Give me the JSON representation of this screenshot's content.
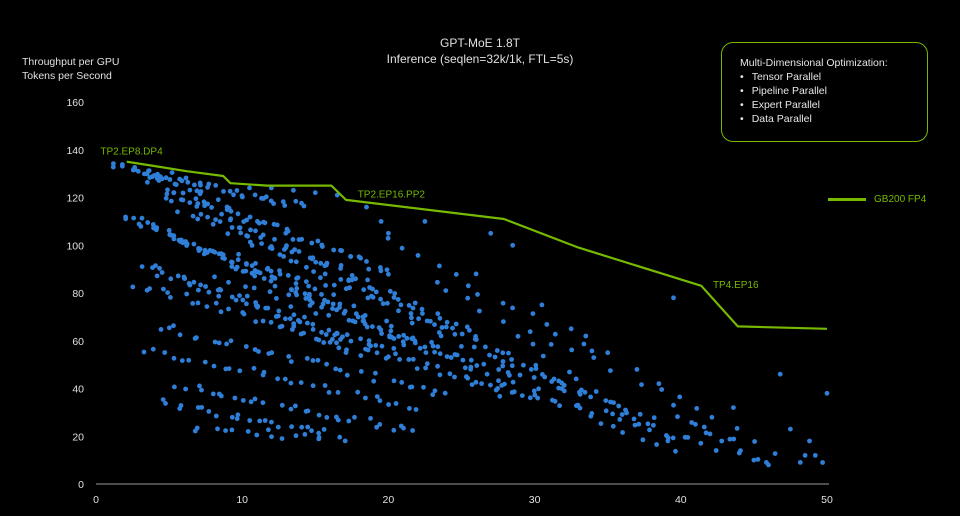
{
  "colors": {
    "background": "#000000",
    "frontier": "#76b900",
    "points": "#2f7fd8",
    "text": "#e0e0e0"
  },
  "header": {
    "title": "GPT-MoE 1.8T",
    "subtitle": "Inference (seqlen=32k/1k, FTL=5s)"
  },
  "ylabel_lines": [
    "Throughput per GPU",
    "Tokens per Second"
  ],
  "optimization_box": {
    "title": "Multi-Dimensional Optimization:",
    "items": [
      "Tensor Parallel",
      "Pipeline Parallel",
      "Expert Parallel",
      "Data Parallel"
    ]
  },
  "chart_data": {
    "type": "scatter",
    "title": "GPT-MoE 1.8T",
    "subtitle": "Inference (seqlen=32k/1k, FTL=5s)",
    "xlabel": "",
    "ylabel": "Throughput per GPU Tokens per Second",
    "xlim": [
      0,
      50
    ],
    "ylim": [
      0,
      160
    ],
    "xticks": [
      0,
      10,
      20,
      30,
      40,
      50
    ],
    "yticks": [
      0,
      20,
      40,
      60,
      80,
      100,
      120,
      140,
      160
    ],
    "grid": false,
    "legend_position": "right",
    "frontier": {
      "name": "GB200 FP4",
      "points": [
        [
          2.1,
          135
        ],
        [
          4.2,
          133
        ],
        [
          6.2,
          131
        ],
        [
          8.7,
          129
        ],
        [
          9.2,
          126
        ],
        [
          11.7,
          125
        ],
        [
          16.1,
          125
        ],
        [
          17.1,
          119
        ],
        [
          27.9,
          111
        ],
        [
          33.0,
          99
        ],
        [
          41.4,
          83
        ],
        [
          43.9,
          66
        ],
        [
          50.0,
          65
        ]
      ]
    },
    "annotations": [
      {
        "text": "TP2.EP8.DP4",
        "x": 0.3,
        "y": 138
      },
      {
        "text": "TP2.EP16.PP2",
        "x": 17.9,
        "y": 120
      },
      {
        "text": "TP4.EP16",
        "x": 42.2,
        "y": 82
      }
    ],
    "scatter_bands": [
      {
        "x0": 1.2,
        "y0": 134,
        "x1": 14,
        "y1": 116,
        "n": 40
      },
      {
        "x0": 2.5,
        "y0": 133,
        "x1": 20,
        "y1": 88,
        "n": 55
      },
      {
        "x0": 3.5,
        "y0": 128,
        "x1": 26,
        "y1": 62,
        "n": 55
      },
      {
        "x0": 4.5,
        "y0": 122,
        "x1": 33,
        "y1": 40,
        "n": 55
      },
      {
        "x0": 6,
        "y0": 114,
        "x1": 40,
        "y1": 18,
        "n": 50
      },
      {
        "x0": 1.8,
        "y0": 112,
        "x1": 16,
        "y1": 80,
        "n": 40
      },
      {
        "x0": 3,
        "y0": 110,
        "x1": 22,
        "y1": 58,
        "n": 45
      },
      {
        "x0": 5,
        "y0": 104,
        "x1": 30,
        "y1": 36,
        "n": 45
      },
      {
        "x0": 8,
        "y0": 98,
        "x1": 38,
        "y1": 18,
        "n": 40
      },
      {
        "x0": 3,
        "y0": 92,
        "x1": 20,
        "y1": 56,
        "n": 40
      },
      {
        "x0": 4.5,
        "y0": 88,
        "x1": 28,
        "y1": 38,
        "n": 40
      },
      {
        "x0": 2.8,
        "y0": 84,
        "x1": 18,
        "y1": 56,
        "n": 30
      },
      {
        "x0": 8,
        "y0": 86,
        "x1": 44,
        "y1": 18,
        "n": 40
      },
      {
        "x0": 4.3,
        "y0": 66,
        "x1": 24,
        "y1": 38,
        "n": 35
      },
      {
        "x0": 3.5,
        "y0": 56,
        "x1": 22,
        "y1": 32,
        "n": 30
      },
      {
        "x0": 5.5,
        "y0": 41,
        "x1": 22,
        "y1": 22,
        "n": 30
      },
      {
        "x0": 4.5,
        "y0": 34,
        "x1": 16,
        "y1": 22,
        "n": 22
      },
      {
        "x0": 6.5,
        "y0": 24,
        "x1": 17,
        "y1": 18,
        "n": 16
      },
      {
        "x0": 14,
        "y0": 62,
        "x1": 46,
        "y1": 10,
        "n": 30
      },
      {
        "x0": 20,
        "y0": 102,
        "x1": 34,
        "y1": 56,
        "n": 14
      },
      {
        "x0": 23,
        "y0": 86,
        "x1": 40,
        "y1": 14,
        "n": 16
      },
      {
        "x0": 30,
        "y0": 64,
        "x1": 48,
        "y1": 10,
        "n": 14
      }
    ],
    "scatter_extra": [
      [
        39.5,
        78
      ],
      [
        46.8,
        46
      ],
      [
        47.5,
        23
      ],
      [
        48.8,
        18
      ],
      [
        49.2,
        12
      ],
      [
        50,
        38
      ],
      [
        48.5,
        12
      ],
      [
        45,
        10
      ],
      [
        43.6,
        32
      ],
      [
        42,
        21
      ],
      [
        22.5,
        110
      ],
      [
        27,
        105
      ],
      [
        28.5,
        100
      ],
      [
        26,
        88
      ],
      [
        30.5,
        75
      ],
      [
        32.5,
        65
      ],
      [
        33.5,
        62
      ],
      [
        35,
        55
      ],
      [
        37,
        48
      ],
      [
        38.5,
        42
      ],
      [
        39.5,
        33
      ],
      [
        41,
        25
      ],
      [
        42.8,
        18
      ],
      [
        44,
        13
      ],
      [
        49.7,
        9
      ],
      [
        46,
        8
      ],
      [
        20,
        105
      ],
      [
        19.5,
        110
      ],
      [
        18.5,
        116
      ],
      [
        16.5,
        121
      ],
      [
        15,
        122
      ],
      [
        13.5,
        123
      ],
      [
        12,
        124
      ],
      [
        10.5,
        124
      ]
    ]
  }
}
